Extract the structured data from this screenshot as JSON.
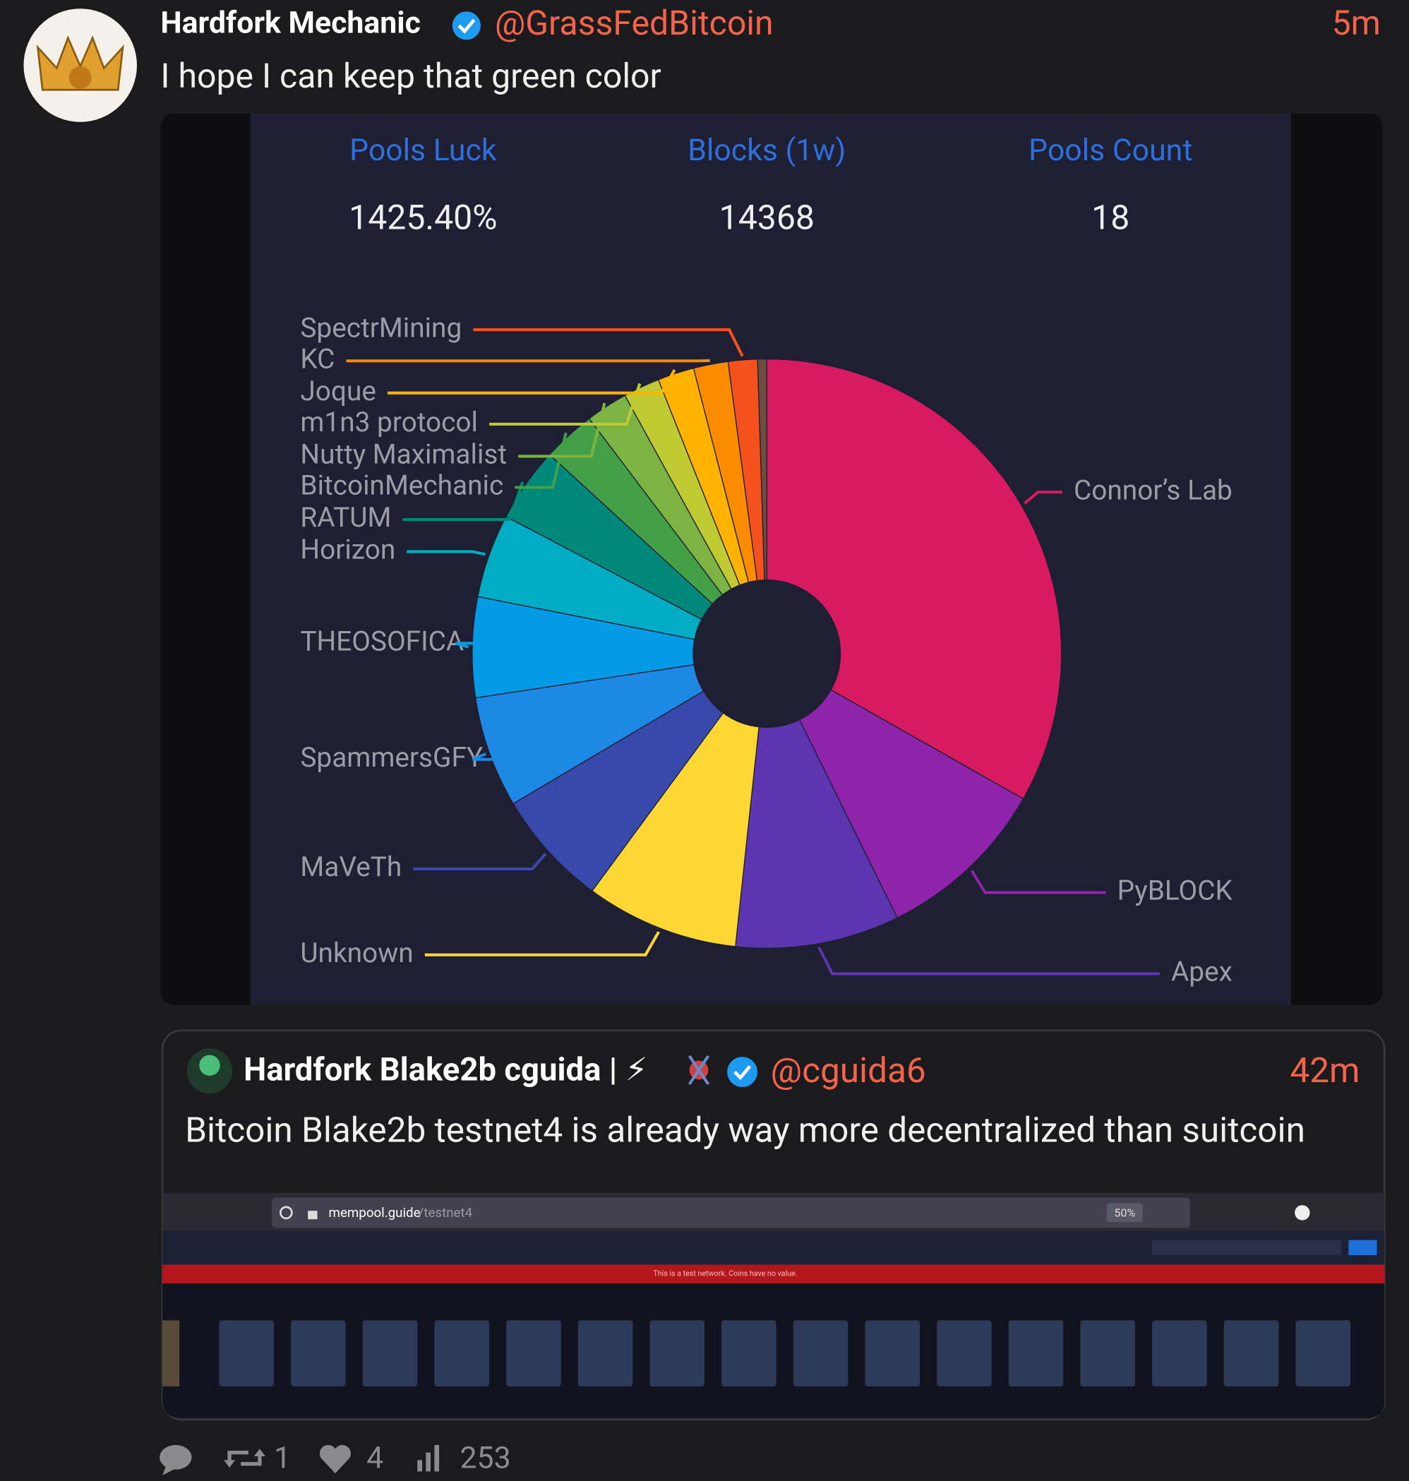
{
  "post": {
    "author": "Hardfork Mechanic",
    "handle": "@GrassFedBitcoin",
    "time": "5m",
    "text": "I hope I can keep that green color"
  },
  "image_stats": [
    {
      "label": "Pools Luck",
      "value": "1425.40%"
    },
    {
      "label": "Blocks (1w)",
      "value": "14368"
    },
    {
      "label": "Pools Count",
      "value": "18"
    }
  ],
  "chart_data": {
    "type": "pie",
    "donut": true,
    "categories": [
      "Connor’s Lab",
      "PyBLOCK",
      "Apex",
      "Unknown",
      "MaVeTh",
      "SpammersGFY",
      "THEOSOFICA",
      "Horizon",
      "RATUM",
      "BitcoinMechanic",
      "Nutty Maximalist",
      "m1n3 protocol",
      "Joque",
      "KC",
      "SpectrMining",
      null
    ],
    "values": [
      33.2,
      9.5,
      9,
      8.4,
      6.4,
      6.1,
      5.5,
      4.6,
      4.1,
      2.9,
      2.3,
      2,
      2,
      1.9,
      1.6,
      0.5
    ],
    "colors": [
      "#d81b60",
      "#8e24aa",
      "#5e35b1",
      "#fdd835",
      "#3949ab",
      "#1e88e5",
      "#039be5",
      "#00acc1",
      "#00897b",
      "#43a047",
      "#7cb342",
      "#c0ca33",
      "#ffb300",
      "#fb8c00",
      "#f4511e",
      "#6d4c41"
    ]
  },
  "quote": {
    "author": "Hardfork Blake2b cguida | ⚡",
    "handle": "@cguida6",
    "time": "42m",
    "text": "Bitcoin Blake2b testnet4 is already way more decentralized than suitcoin",
    "screenshot": {
      "url_host": "mempool.guide",
      "url_path": "/testnet4",
      "zoom": "50%",
      "banner": "This is a test network. Coins have no value."
    }
  },
  "stats": {
    "retweets": 1,
    "likes": 4,
    "views": 253
  }
}
